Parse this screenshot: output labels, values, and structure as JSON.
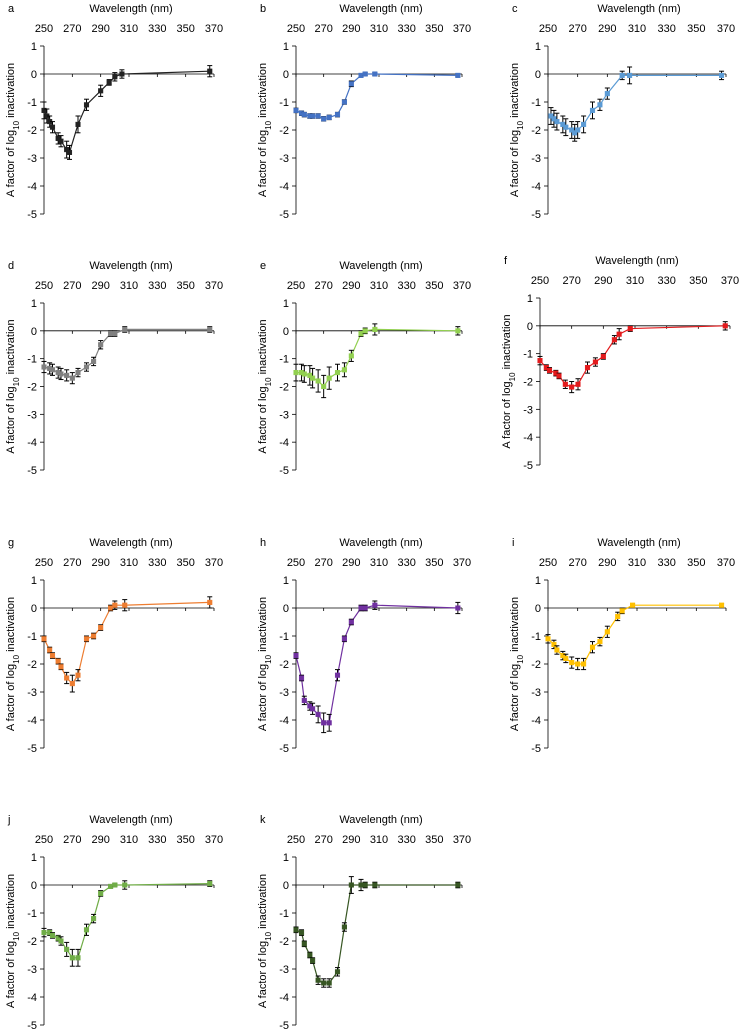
{
  "chart_data": [
    {
      "panel": "a",
      "type": "line",
      "color": "#222222",
      "xlabel": "Wavelength (nm)",
      "ylabel": "A factor of log10 inactivation",
      "xlim": [
        250,
        370
      ],
      "ylim": [
        -5,
        1
      ],
      "x": [
        250,
        252,
        254,
        256,
        260,
        262,
        266,
        268,
        274,
        280,
        290,
        296,
        300,
        305,
        367
      ],
      "y": [
        -1.3,
        -1.5,
        -1.7,
        -1.9,
        -2.3,
        -2.4,
        -2.7,
        -2.8,
        -1.8,
        -1.1,
        -0.6,
        -0.3,
        -0.1,
        0,
        0.1
      ],
      "err": [
        0.3,
        0.25,
        0.2,
        0.2,
        0.2,
        0.2,
        0.3,
        0.25,
        0.3,
        0.2,
        0.2,
        0.1,
        0.15,
        0.15,
        0.2
      ]
    },
    {
      "panel": "b",
      "type": "line",
      "color": "#4472C4",
      "xlabel": "Wavelength (nm)",
      "ylabel": "A factor of log10 inactivation",
      "xlim": [
        250,
        370
      ],
      "ylim": [
        -5,
        1
      ],
      "x": [
        250,
        254,
        256,
        260,
        262,
        266,
        270,
        274,
        280,
        285,
        290,
        297,
        300,
        307,
        367
      ],
      "y": [
        -1.3,
        -1.4,
        -1.45,
        -1.5,
        -1.5,
        -1.5,
        -1.6,
        -1.55,
        -1.45,
        -1,
        -0.35,
        -0.05,
        0,
        0,
        -0.05
      ],
      "err": [
        0.08,
        0.08,
        0.08,
        0.08,
        0.08,
        0.08,
        0.08,
        0.08,
        0.08,
        0.08,
        0.1,
        0.05,
        0.05,
        0.05,
        0.05
      ]
    },
    {
      "panel": "c",
      "type": "line",
      "color": "#5B9BD5",
      "xlabel": "Wavelength (nm)",
      "ylabel": "A factor of log10 inactivation",
      "xlim": [
        250,
        370
      ],
      "ylim": [
        -5,
        1
      ],
      "x": [
        252,
        254,
        256,
        260,
        262,
        266,
        268,
        270,
        274,
        280,
        285,
        290,
        300,
        305,
        367
      ],
      "y": [
        -1.5,
        -1.6,
        -1.7,
        -1.8,
        -1.9,
        -2,
        -2.1,
        -2,
        -1.8,
        -1.3,
        -1.1,
        -0.7,
        -0.05,
        -0.05,
        -0.05
      ],
      "err": [
        0.3,
        0.3,
        0.3,
        0.3,
        0.3,
        0.3,
        0.3,
        0.3,
        0.3,
        0.3,
        0.2,
        0.2,
        0.15,
        0.3,
        0.15
      ]
    },
    {
      "panel": "d",
      "type": "line",
      "color": "#808080",
      "xlabel": "Wavelength (nm)",
      "ylabel": "A factor of log10 inactivation",
      "xlim": [
        250,
        370
      ],
      "ylim": [
        -5,
        1
      ],
      "x": [
        250,
        254,
        256,
        260,
        262,
        266,
        270,
        274,
        280,
        285,
        290,
        297,
        300,
        307,
        367
      ],
      "y": [
        -1.3,
        -1.35,
        -1.4,
        -1.5,
        -1.55,
        -1.6,
        -1.7,
        -1.5,
        -1.3,
        -1.1,
        -0.5,
        -0.1,
        -0.1,
        0.05,
        0.05
      ],
      "err": [
        0.2,
        0.2,
        0.2,
        0.2,
        0.2,
        0.2,
        0.2,
        0.15,
        0.15,
        0.15,
        0.15,
        0.1,
        0.1,
        0.1,
        0.1
      ]
    },
    {
      "panel": "e",
      "type": "line",
      "color": "#92D050",
      "xlabel": "Wavelength (nm)",
      "ylabel": "A factor of log10 inactivation",
      "xlim": [
        250,
        370
      ],
      "ylim": [
        -5,
        1
      ],
      "x": [
        250,
        254,
        256,
        260,
        262,
        266,
        270,
        274,
        280,
        285,
        290,
        297,
        300,
        307,
        367
      ],
      "y": [
        -1.5,
        -1.5,
        -1.55,
        -1.6,
        -1.7,
        -1.8,
        -2,
        -1.7,
        -1.5,
        -1.4,
        -0.9,
        -0.1,
        0,
        0.05,
        0
      ],
      "err": [
        0.3,
        0.3,
        0.3,
        0.35,
        0.35,
        0.4,
        0.4,
        0.4,
        0.3,
        0.25,
        0.2,
        0.1,
        0.1,
        0.2,
        0.15
      ]
    },
    {
      "panel": "f",
      "type": "line",
      "color": "#E31A1C",
      "xlabel": "Wavelength (nm)",
      "ylabel": "A factor of log10 inactivation",
      "xlim": [
        250,
        370
      ],
      "ylim": [
        -5,
        1
      ],
      "x": [
        250,
        254,
        256,
        260,
        262,
        266,
        270,
        274,
        280,
        285,
        290,
        297,
        300,
        307,
        367
      ],
      "y": [
        -1.25,
        -1.5,
        -1.6,
        -1.7,
        -1.8,
        -2.1,
        -2.2,
        -2.1,
        -1.5,
        -1.3,
        -1.1,
        -0.5,
        -0.3,
        -0.1,
        0
      ],
      "err": [
        0.15,
        0.1,
        0.1,
        0.1,
        0.1,
        0.15,
        0.2,
        0.2,
        0.2,
        0.15,
        0.1,
        0.15,
        0.2,
        0.1,
        0.15
      ]
    },
    {
      "panel": "g",
      "type": "line",
      "color": "#ED7D31",
      "xlabel": "Wavelength (nm)",
      "ylabel": "A factor of log10 inactivation",
      "xlim": [
        250,
        370
      ],
      "ylim": [
        -5,
        1
      ],
      "x": [
        250,
        254,
        256,
        260,
        262,
        266,
        270,
        274,
        280,
        285,
        290,
        297,
        300,
        307,
        367
      ],
      "y": [
        -1.1,
        -1.5,
        -1.7,
        -1.9,
        -2.1,
        -2.5,
        -2.7,
        -2.4,
        -1.1,
        -1,
        -0.7,
        0,
        0.1,
        0.1,
        0.2
      ],
      "err": [
        0.1,
        0.1,
        0.1,
        0.1,
        0.1,
        0.2,
        0.3,
        0.2,
        0.1,
        0.1,
        0.1,
        0.1,
        0.15,
        0.2,
        0.2
      ]
    },
    {
      "panel": "h",
      "type": "line",
      "color": "#7030A0",
      "xlabel": "Wavelength (nm)",
      "ylabel": "A factor of log10 inactivation",
      "xlim": [
        250,
        370
      ],
      "ylim": [
        -5,
        1
      ],
      "x": [
        250,
        254,
        256,
        260,
        262,
        266,
        270,
        274,
        280,
        285,
        290,
        297,
        300,
        307,
        367
      ],
      "y": [
        -1.7,
        -2.5,
        -3.3,
        -3.5,
        -3.6,
        -3.8,
        -4.1,
        -4.1,
        -2.4,
        -1.1,
        -0.5,
        0,
        0,
        0.1,
        0
      ],
      "err": [
        0.1,
        0.1,
        0.15,
        0.15,
        0.2,
        0.3,
        0.35,
        0.3,
        0.2,
        0.1,
        0.1,
        0.1,
        0.1,
        0.15,
        0.2
      ]
    },
    {
      "panel": "i",
      "type": "line",
      "color": "#FFC000",
      "xlabel": "Wavelength (nm)",
      "ylabel": "A factor of log10 inactivation",
      "xlim": [
        250,
        370
      ],
      "ylim": [
        -5,
        1
      ],
      "x": [
        250,
        254,
        256,
        260,
        262,
        266,
        270,
        274,
        280,
        285,
        290,
        297,
        300,
        307,
        367
      ],
      "y": [
        -1.1,
        -1.3,
        -1.5,
        -1.7,
        -1.8,
        -1.95,
        -2,
        -2,
        -1.4,
        -1.2,
        -0.85,
        -0.3,
        -0.1,
        0.1,
        0.1
      ],
      "err": [
        0.15,
        0.15,
        0.15,
        0.15,
        0.15,
        0.2,
        0.2,
        0.2,
        0.2,
        0.15,
        0.2,
        0.15,
        0.1,
        0.05,
        0.05
      ]
    },
    {
      "panel": "j",
      "type": "line",
      "color": "#70AD47",
      "xlabel": "Wavelength (nm)",
      "ylabel": "A factor of log10 inactivation",
      "xlim": [
        250,
        370
      ],
      "ylim": [
        -5,
        1
      ],
      "x": [
        250,
        254,
        256,
        260,
        262,
        266,
        270,
        274,
        280,
        285,
        290,
        297,
        300,
        307,
        367
      ],
      "y": [
        -1.7,
        -1.7,
        -1.8,
        -1.9,
        -2,
        -2.3,
        -2.6,
        -2.6,
        -1.6,
        -1.2,
        -0.3,
        -0.05,
        0,
        0,
        0.05
      ],
      "err": [
        0.15,
        0.1,
        0.1,
        0.1,
        0.15,
        0.25,
        0.3,
        0.3,
        0.2,
        0.15,
        0.1,
        0.05,
        0.05,
        0.15,
        0.1
      ]
    },
    {
      "panel": "k",
      "type": "line",
      "color": "#375623",
      "xlabel": "Wavelength (nm)",
      "ylabel": "A factor of log10 inactivation",
      "xlim": [
        250,
        370
      ],
      "ylim": [
        -5,
        1
      ],
      "x": [
        250,
        254,
        256,
        260,
        262,
        266,
        270,
        274,
        280,
        285,
        290,
        297,
        300,
        307,
        367
      ],
      "y": [
        -1.6,
        -1.7,
        -2.1,
        -2.5,
        -2.7,
        -3.4,
        -3.5,
        -3.5,
        -3.1,
        -1.5,
        0,
        0,
        0,
        0,
        0
      ],
      "err": [
        0.1,
        0.1,
        0.1,
        0.1,
        0.1,
        0.15,
        0.15,
        0.15,
        0.15,
        0.15,
        0.3,
        0.2,
        0.1,
        0.1,
        0.1
      ]
    }
  ],
  "axes": {
    "x_ticks": [
      "250",
      "270",
      "290",
      "310",
      "330",
      "350",
      "370"
    ],
    "y_ticks": [
      "1",
      "0",
      "-1",
      "-2",
      "-3",
      "-4",
      "-5"
    ],
    "xlabel": "Wavelength (nm)",
    "ylabel_prefix": "A factor of log",
    "ylabel_sub": "10",
    "ylabel_suffix": " inactivation"
  }
}
